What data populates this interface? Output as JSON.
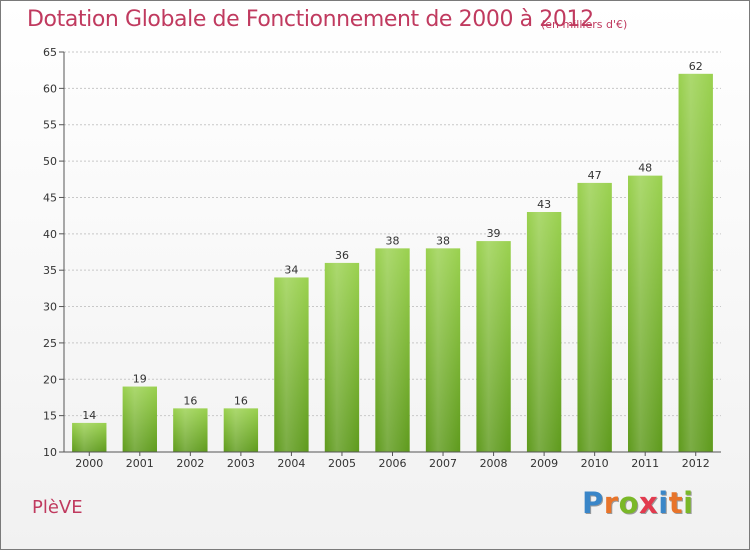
{
  "header": {
    "title": "Dotation Globale de Fonctionnement de 2000 à 2012",
    "subtitle": "(en milliers d'€)"
  },
  "footer": {
    "commune": "PlèVE",
    "logo": {
      "letters": [
        "P",
        "r",
        "o",
        "x",
        "i",
        "t",
        "i"
      ],
      "colors": [
        "#3a86c8",
        "#e8742a",
        "#7ab828",
        "#e23a4e",
        "#3a86c8",
        "#e8742a",
        "#7ab828"
      ]
    }
  },
  "colors": {
    "title": "#c03a5f",
    "bar_top": "#9ad14f",
    "bar_bottom": "#5e9a1c",
    "grid": "#c8c8c8",
    "axis": "#555555"
  },
  "chart_data": {
    "type": "bar",
    "categories": [
      "2000",
      "2001",
      "2002",
      "2003",
      "2004",
      "2005",
      "2006",
      "2007",
      "2008",
      "2009",
      "2010",
      "2011",
      "2012"
    ],
    "values": [
      14,
      19,
      16,
      16,
      34,
      36,
      38,
      38,
      39,
      43,
      47,
      48,
      62
    ],
    "ylim": [
      10,
      65
    ],
    "yticks": [
      10,
      15,
      20,
      25,
      30,
      35,
      40,
      45,
      50,
      55,
      60,
      65
    ],
    "grid": true,
    "data_labels": true
  }
}
